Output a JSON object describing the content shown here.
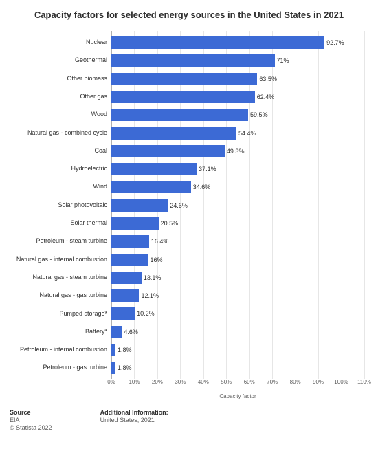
{
  "chart": {
    "type": "bar-horizontal",
    "title": "Capacity factors for selected energy sources in the United States in 2021",
    "xlabel": "Capacity factor",
    "xlim": [
      0,
      110
    ],
    "xtick_step": 10,
    "xtick_suffix": "%",
    "bar_color": "#3c6ad5",
    "grid_color": "#e6e6e6",
    "baseline_color": "#b0b0b0",
    "background_color": "#ffffff",
    "value_suffix": "%",
    "title_fontsize": 13,
    "label_fontsize": 9,
    "tick_fontsize": 8,
    "data": [
      {
        "category": "Nuclear",
        "value": 92.7
      },
      {
        "category": "Geothermal",
        "value": 71
      },
      {
        "category": "Other biomass",
        "value": 63.5
      },
      {
        "category": "Other gas",
        "value": 62.4
      },
      {
        "category": "Wood",
        "value": 59.5
      },
      {
        "category": "Natural gas - combined cycle",
        "value": 54.4
      },
      {
        "category": "Coal",
        "value": 49.3
      },
      {
        "category": "Hydroelectric",
        "value": 37.1
      },
      {
        "category": "Wind",
        "value": 34.6
      },
      {
        "category": "Solar photovoltaic",
        "value": 24.6
      },
      {
        "category": "Solar thermal",
        "value": 20.5
      },
      {
        "category": "Petroleum - steam turbine",
        "value": 16.4
      },
      {
        "category": "Natural gas - internal combustion",
        "value": 16
      },
      {
        "category": "Natural gas - steam turbine",
        "value": 13.1
      },
      {
        "category": "Natural gas - gas turbine",
        "value": 12.1
      },
      {
        "category": "Pumped storage*",
        "value": 10.2
      },
      {
        "category": "Battery*",
        "value": 4.6
      },
      {
        "category": "Petroleum - internal combustion",
        "value": 1.8
      },
      {
        "category": "Petroleum - gas turbine",
        "value": 1.8
      }
    ]
  },
  "footer": {
    "source_head": "Source",
    "source_1": "EIA",
    "source_2": "© Statista 2022",
    "addl_head": "Additional Information:",
    "addl_1": "United States; 2021"
  }
}
